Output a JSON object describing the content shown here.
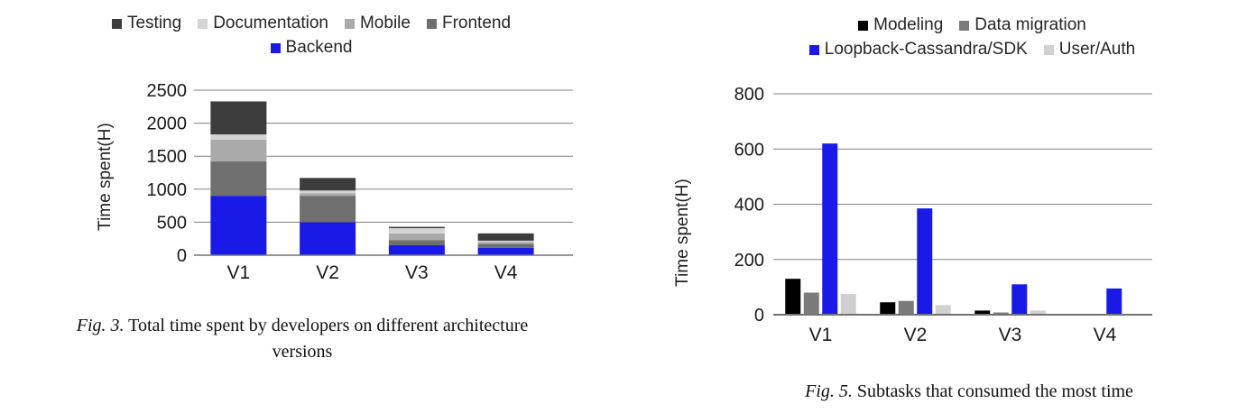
{
  "figures": [
    {
      "id": "fig3",
      "y_axis_label": "Time spent(H)",
      "caption_label": "Fig. 3.",
      "caption_text": "Total time spent by developers on different architecture versions"
    },
    {
      "id": "fig5",
      "y_axis_label": "Time spent(H)",
      "caption_label": "Fig. 5.",
      "caption_text": "Subtasks that consumed the most time"
    }
  ],
  "chart_data": [
    {
      "type": "bar",
      "subtype": "stacked",
      "title": "",
      "xlabel": "",
      "ylabel": "Time spent(H)",
      "categories": [
        "V1",
        "V2",
        "V3",
        "V4"
      ],
      "series": [
        {
          "name": "Backend",
          "color": "#1a1ae8",
          "values": [
            900,
            500,
            150,
            110
          ]
        },
        {
          "name": "Frontend",
          "color": "#6f6f6f",
          "values": [
            520,
            400,
            80,
            60
          ]
        },
        {
          "name": "Mobile",
          "color": "#aaaaaa",
          "values": [
            330,
            40,
            100,
            30
          ]
        },
        {
          "name": "Documentation",
          "color": "#d4d4d4",
          "values": [
            80,
            40,
            80,
            20
          ]
        },
        {
          "name": "Testing",
          "color": "#3d3d3d",
          "values": [
            500,
            190,
            20,
            110
          ]
        }
      ],
      "totals": [
        2330,
        1170,
        430,
        330
      ],
      "ylim": [
        0,
        2500
      ],
      "ytick_step": 500,
      "yticks": [
        "0",
        "500",
        "1000",
        "1500",
        "2000",
        "2500"
      ],
      "grid": true,
      "legend_position": "top",
      "legend_rows": [
        [
          "Testing",
          "Documentation",
          "Mobile",
          "Frontend"
        ],
        [
          "Backend"
        ]
      ]
    },
    {
      "type": "bar",
      "subtype": "grouped",
      "title": "",
      "xlabel": "",
      "ylabel": "Time spent(H)",
      "categories": [
        "V1",
        "V2",
        "V3",
        "V4"
      ],
      "series": [
        {
          "name": "Modeling",
          "color": "#000000",
          "values": [
            130,
            45,
            15,
            0
          ]
        },
        {
          "name": "Data migration",
          "color": "#7a7a7a",
          "values": [
            80,
            50,
            8,
            0
          ]
        },
        {
          "name": "Loopback-Cassandra/SDK",
          "color": "#1a1ae8",
          "values": [
            620,
            385,
            110,
            95
          ]
        },
        {
          "name": "User/Auth",
          "color": "#d0d0d0",
          "values": [
            75,
            35,
            15,
            0
          ]
        }
      ],
      "ylim": [
        0,
        800
      ],
      "ytick_step": 200,
      "yticks": [
        "0",
        "200",
        "400",
        "600",
        "800"
      ],
      "grid": true,
      "legend_position": "top",
      "legend_rows": [
        [
          "Modeling",
          "Data migration"
        ],
        [
          "Loopback-Cassandra/SDK",
          "User/Auth"
        ]
      ]
    }
  ]
}
